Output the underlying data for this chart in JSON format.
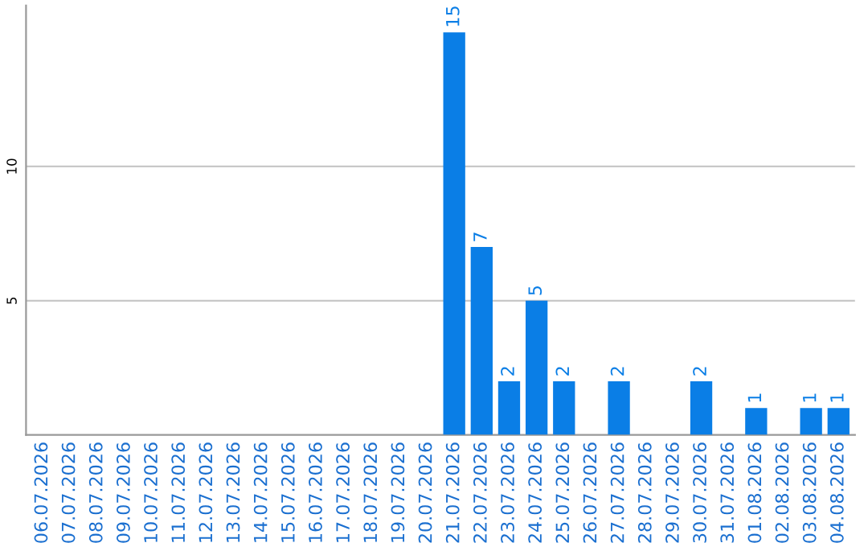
{
  "chart_data": {
    "type": "bar",
    "categories": [
      "06.07.2026",
      "07.07.2026",
      "08.07.2026",
      "09.07.2026",
      "10.07.2026",
      "11.07.2026",
      "12.07.2026",
      "13.07.2026",
      "14.07.2026",
      "15.07.2026",
      "16.07.2026",
      "17.07.2026",
      "18.07.2026",
      "19.07.2026",
      "20.07.2026",
      "21.07.2026",
      "22.07.2026",
      "23.07.2026",
      "24.07.2026",
      "25.07.2026",
      "26.07.2026",
      "27.07.2026",
      "28.07.2026",
      "29.07.2026",
      "30.07.2026",
      "31.07.2026",
      "01.08.2026",
      "02.08.2026",
      "03.08.2026",
      "04.08.2026"
    ],
    "values": [
      0,
      0,
      0,
      0,
      0,
      0,
      0,
      0,
      0,
      0,
      0,
      0,
      0,
      0,
      0,
      15,
      7,
      2,
      5,
      2,
      0,
      2,
      0,
      0,
      2,
      0,
      1,
      0,
      1,
      1
    ],
    "value_labels": [
      null,
      null,
      null,
      null,
      null,
      null,
      null,
      null,
      null,
      null,
      null,
      null,
      null,
      null,
      null,
      "15",
      "7",
      "2",
      "5",
      "2",
      null,
      "2",
      null,
      null,
      "2",
      null,
      "1",
      null,
      "1",
      "1"
    ],
    "color": "#0a7ee6",
    "ylim": [
      0,
      16
    ],
    "yticks": [
      5,
      10
    ],
    "grid": "y"
  }
}
